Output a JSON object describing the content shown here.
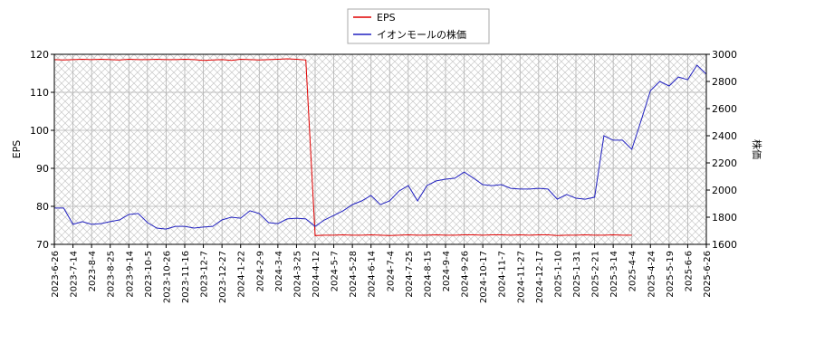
{
  "chart_data": {
    "type": "line",
    "y_label": "EPS",
    "y2_label": "株価",
    "categories": [
      "2023-6-26",
      null,
      "2023-7-14",
      null,
      "2023-8-4",
      null,
      "2023-8-25",
      null,
      "2023-9-14",
      null,
      "2023-10-5",
      null,
      "2023-10-26",
      null,
      "2023-11-16",
      null,
      "2023-12-7",
      null,
      "2023-12-27",
      null,
      "2024-1-22",
      null,
      "2024-2-9",
      null,
      "2024-3-4",
      null,
      "2024-3-25",
      null,
      "2024-4-12",
      null,
      "2024-5-7",
      null,
      "2024-5-28",
      null,
      "2024-6-14",
      null,
      "2024-7-4",
      null,
      "2024-7-25",
      null,
      "2024-8-15",
      null,
      "2024-9-4",
      null,
      "2024-9-26",
      null,
      "2024-10-17",
      null,
      "2024-11-7",
      null,
      "2024-11-27",
      null,
      "2024-12-17",
      null,
      "2025-1-10",
      null,
      "2025-1-31",
      null,
      "2025-2-21",
      null,
      "2025-3-14",
      null,
      "2025-4-4",
      null,
      "2025-4-24",
      null,
      "2025-5-19",
      null,
      "2025-6-6",
      null,
      "2025-6-26"
    ],
    "series": [
      {
        "name": "EPS",
        "color": "#e00000",
        "axis": "y",
        "values": [
          118.6,
          118.5,
          118.6,
          118.7,
          118.6,
          118.7,
          118.6,
          118.5,
          118.7,
          118.6,
          118.6,
          118.7,
          118.6,
          118.6,
          118.7,
          118.6,
          118.4,
          118.5,
          118.6,
          118.4,
          118.7,
          118.6,
          118.5,
          118.6,
          118.7,
          118.8,
          118.7,
          118.5,
          72.3,
          72.4,
          72.4,
          72.5,
          72.4,
          72.4,
          72.5,
          72.4,
          72.3,
          72.4,
          72.5,
          72.4,
          72.4,
          72.5,
          72.4,
          72.4,
          72.5,
          72.5,
          72.4,
          72.5,
          72.5,
          72.4,
          72.5,
          72.4,
          72.5,
          72.5,
          72.3,
          72.4,
          72.4,
          72.5,
          72.4,
          72.4,
          72.5,
          72.4,
          72.4,
          null,
          null,
          null,
          null,
          null,
          null,
          null,
          null
        ]
      },
      {
        "name": "イオンモールの株価",
        "color": "#2020c0",
        "axis": "y2",
        "values": [
          1867,
          1867,
          1747,
          1767,
          1747,
          1753,
          1767,
          1780,
          1820,
          1827,
          1760,
          1720,
          1713,
          1733,
          1733,
          1720,
          1727,
          1733,
          1780,
          1800,
          1793,
          1847,
          1827,
          1760,
          1753,
          1787,
          1793,
          1787,
          1733,
          1780,
          1813,
          1847,
          1893,
          1920,
          1960,
          1893,
          1920,
          1993,
          2033,
          1920,
          2033,
          2067,
          2080,
          2087,
          2133,
          2087,
          2040,
          2033,
          2040,
          2013,
          2007,
          2007,
          2013,
          2007,
          1933,
          1967,
          1940,
          1933,
          1947,
          2400,
          2367,
          2367,
          2300,
          2513,
          2733,
          2800,
          2767,
          2833,
          2813,
          2920,
          2853
        ]
      }
    ],
    "ylim": [
      70,
      120
    ],
    "yticks": [
      70,
      80,
      90,
      100,
      110,
      120
    ],
    "y2lim": [
      1600,
      3000
    ],
    "y2ticks": [
      1600,
      1800,
      2000,
      2200,
      2400,
      2600,
      2800,
      3000
    ],
    "grid": true,
    "legend": "top"
  }
}
